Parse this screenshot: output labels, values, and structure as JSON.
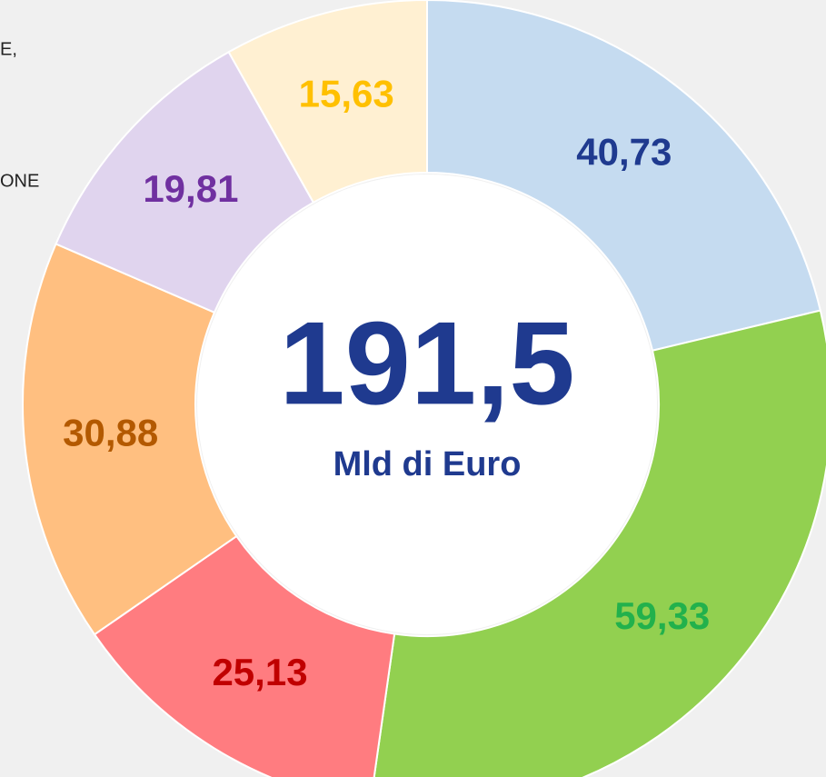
{
  "chart_data": {
    "type": "donut",
    "categories": [
      null,
      null,
      null,
      null,
      null,
      null
    ],
    "values": [
      40.73,
      59.33,
      25.13,
      30.88,
      19.81,
      15.63
    ],
    "value_labels": [
      "40,73",
      "59,33",
      "25,13",
      "30,88",
      "19,81",
      "15,63"
    ],
    "colors": [
      "#c5dbf0",
      "#92d050",
      "#ff7c80",
      "#ffbf80",
      "#e0d4ee",
      "#fff0d2"
    ],
    "label_colors": [
      "#1f3a8f",
      "#22b14c",
      "#c00000",
      "#b35900",
      "#7030a0",
      "#ffc000"
    ],
    "center_text": "191,5",
    "center_subtext": "Mld di Euro",
    "annotations": [
      "E,",
      "ONE"
    ]
  }
}
